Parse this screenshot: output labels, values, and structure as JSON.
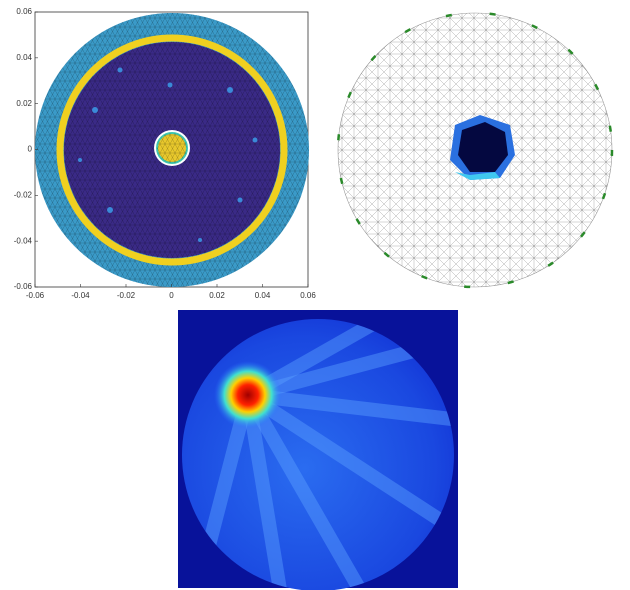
{
  "figure": {
    "panels": [
      {
        "xlim": [
          -0.06,
          0.06
        ],
        "ylim": [
          -0.06,
          0.06
        ],
        "xticks": [
          -0.06,
          -0.04,
          -0.02,
          0,
          0.02,
          0.04,
          0.06
        ],
        "yticks": [
          -0.06,
          -0.04,
          -0.02,
          0,
          0.02,
          0.04,
          0.06
        ]
      }
    ]
  }
}
